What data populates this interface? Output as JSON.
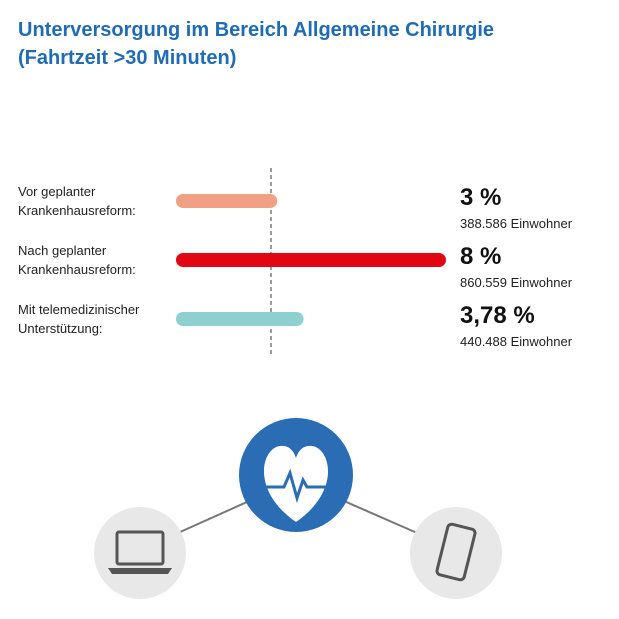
{
  "chart_data": {
    "type": "bar",
    "orientation": "horizontal",
    "title": "Unterversorgung im Bereich Allgemeine Chirurgie (Fahrtzeit >30 Minuten)",
    "categories": [
      "Vor geplanter Krankenhausreform:",
      "Nach geplanter Krankenhausreform:",
      "Mit telemedizinischer Unterstützung:"
    ],
    "values": [
      3,
      8,
      3.78
    ],
    "value_labels": [
      "3 %",
      "8 %",
      "3,78 %"
    ],
    "annotations": [
      "388.586 Einwohner",
      "860.559 Einwohner",
      "440.488 Einwohner"
    ],
    "colors": [
      "#f0a184",
      "#e20613",
      "#8ecfcf"
    ],
    "xlim": [
      0,
      8
    ]
  }
}
